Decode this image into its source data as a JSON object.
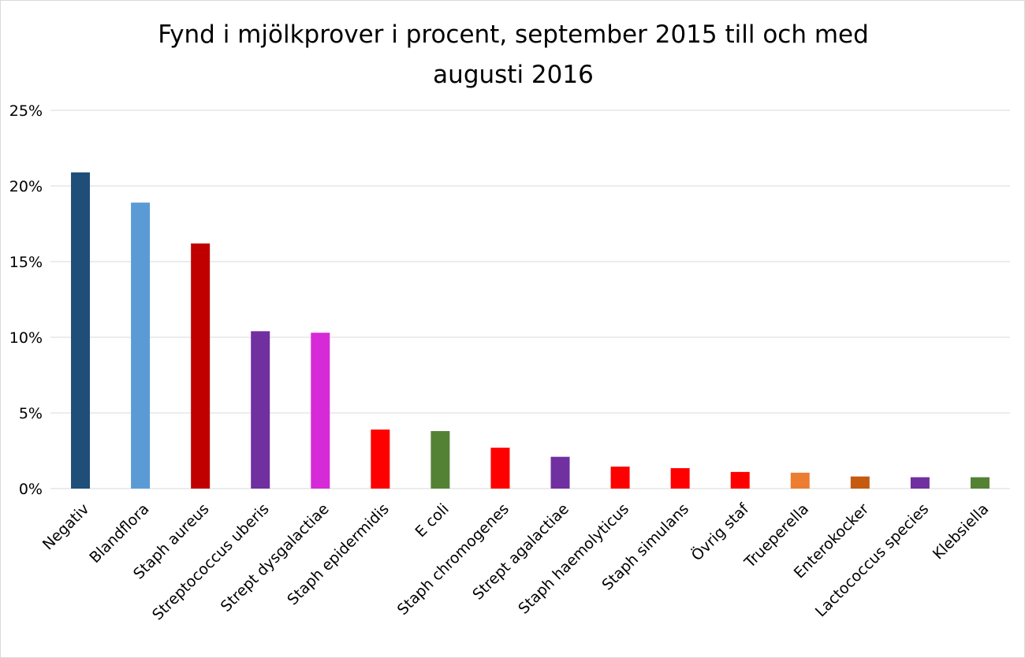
{
  "chart_data": {
    "type": "bar",
    "title_lines": [
      "Fynd i mjölkprover i procent, september 2015 till och med",
      "augusti 2016"
    ],
    "xlabel": "",
    "ylabel": "",
    "ylim": [
      0,
      0.25
    ],
    "yticks": [
      0,
      0.05,
      0.1,
      0.15,
      0.2,
      0.25
    ],
    "ytick_labels": [
      "0%",
      "5%",
      "10%",
      "15%",
      "20%",
      "25%"
    ],
    "grid": true,
    "legend": "none",
    "categories": [
      "Negativ",
      "Blandflora",
      "Staph aureus",
      "Streptococcus uberis",
      "Strept dysgalactiae",
      "Staph epidermidis",
      "E coli",
      "Staph chromogenes",
      "Strept agalactiae",
      "Staph haemolyticus",
      "Staph simulans",
      "Övrig staf",
      "Trueperella",
      "Enterokocker",
      "Lactococcus species",
      "Klebsiella"
    ],
    "values": [
      0.209,
      0.189,
      0.162,
      0.104,
      0.103,
      0.039,
      0.038,
      0.027,
      0.021,
      0.0145,
      0.0135,
      0.011,
      0.0105,
      0.008,
      0.0075,
      0.0075
    ],
    "colors": [
      "#1f4e79",
      "#5b9bd5",
      "#c00000",
      "#7030a0",
      "#d62ad8",
      "#ff0000",
      "#548235",
      "#ff0000",
      "#7030a0",
      "#ff0000",
      "#ff0000",
      "#ff0000",
      "#ed7d31",
      "#c55a11",
      "#7030a0",
      "#548235"
    ],
    "gridline_color": "#d9d9d9"
  }
}
